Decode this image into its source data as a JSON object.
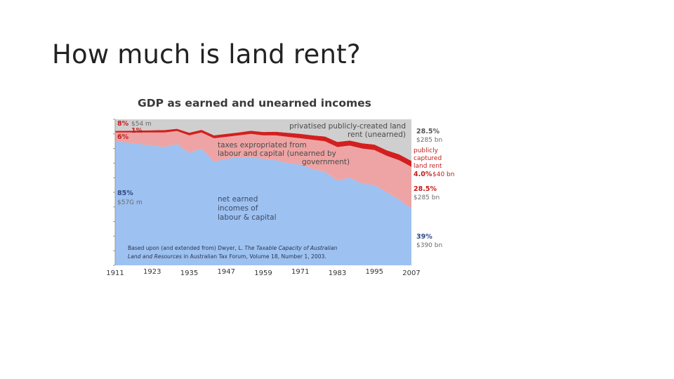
{
  "slide": {
    "title": "How much is land rent?"
  },
  "chart_data": {
    "type": "area",
    "title": "GDP as earned and unearned incomes",
    "x": [
      1911,
      1915,
      1919,
      1923,
      1927,
      1931,
      1935,
      1939,
      1943,
      1947,
      1951,
      1955,
      1959,
      1963,
      1967,
      1971,
      1975,
      1979,
      1983,
      1987,
      1991,
      1995,
      1999,
      2003,
      2007
    ],
    "xticks": [
      "1911",
      "1923",
      "1935",
      "1947",
      "1959",
      "1971",
      "1983",
      "1995",
      "2007"
    ],
    "ylim": [
      0,
      100
    ],
    "series": [
      {
        "name": "net earned incomes of labour & capital",
        "values": [
          85,
          84,
          83,
          82,
          81,
          83,
          77,
          80,
          71,
          73,
          74,
          74,
          73,
          72,
          70,
          69,
          66,
          64,
          58,
          60,
          56,
          55,
          50,
          45,
          39
        ]
      },
      {
        "name": "taxes expropriated from labour and capital (unearned by government)",
        "values": [
          6,
          7,
          8,
          9,
          10,
          9,
          12,
          11,
          16,
          15,
          15,
          16,
          16,
          17,
          18,
          18,
          20,
          21,
          23,
          22,
          24,
          24,
          25,
          27,
          28.5
        ]
      },
      {
        "name": "publicly captured land rent",
        "values": [
          1,
          1.2,
          1.3,
          1.5,
          1.6,
          1.5,
          1.8,
          1.8,
          2,
          2,
          2,
          2.2,
          2.3,
          2.5,
          2.7,
          3,
          3,
          3.2,
          3.5,
          3.5,
          3.6,
          3.7,
          3.8,
          4,
          4
        ]
      },
      {
        "name": "privatised publicly-created land rent (unearned)",
        "values": [
          8,
          7.8,
          7.7,
          7.5,
          7.4,
          6.5,
          9.2,
          7.2,
          11,
          10,
          9,
          7.8,
          8.7,
          8.5,
          9.3,
          10,
          11,
          11.8,
          15.5,
          14.5,
          16.4,
          17.3,
          21.2,
          24,
          28.5
        ]
      }
    ],
    "labels": {
      "privatised": [
        "privatised publicly-created land",
        "rent (unearned)"
      ],
      "taxes": [
        "taxes expropriated from",
        "labour and capital (unearned  by",
        "government)"
      ],
      "earned": [
        "net earned",
        "incomes of",
        "labour & capital"
      ],
      "captured": [
        "publicly",
        "captured",
        "land rent"
      ]
    },
    "annotations": {
      "start_privatised_pct": "8%",
      "start_privatised_amt": "$54 m",
      "start_captured_pct": "1%",
      "start_taxes_pct": "6%",
      "start_earned_pct": "85%",
      "start_earned_amt": "$57G m",
      "end_privatised_pct": "28.5%",
      "end_privatised_amt": "$285 bn",
      "end_captured_pct": "4.0%",
      "end_captured_amt": "$40 bn",
      "end_taxes_pct": "28.5%",
      "end_taxes_amt": "$285 bn",
      "end_earned_pct": "39%",
      "end_earned_amt": "$390 bn"
    },
    "source": {
      "line1_a": "Based upon (and extended from) Dwyer, L. ",
      "line1_b": "The Taxable Capacity of Australian",
      "line2_a": "Land and Resources",
      "line2_b": " in Australian Tax Forum, Volume 18, Number 1, 2003."
    },
    "colors": {
      "earned": "#9dc1f0",
      "taxes": "#eea4a4",
      "captured": "#d31f1f",
      "privatised": "#cfcfcf"
    }
  }
}
